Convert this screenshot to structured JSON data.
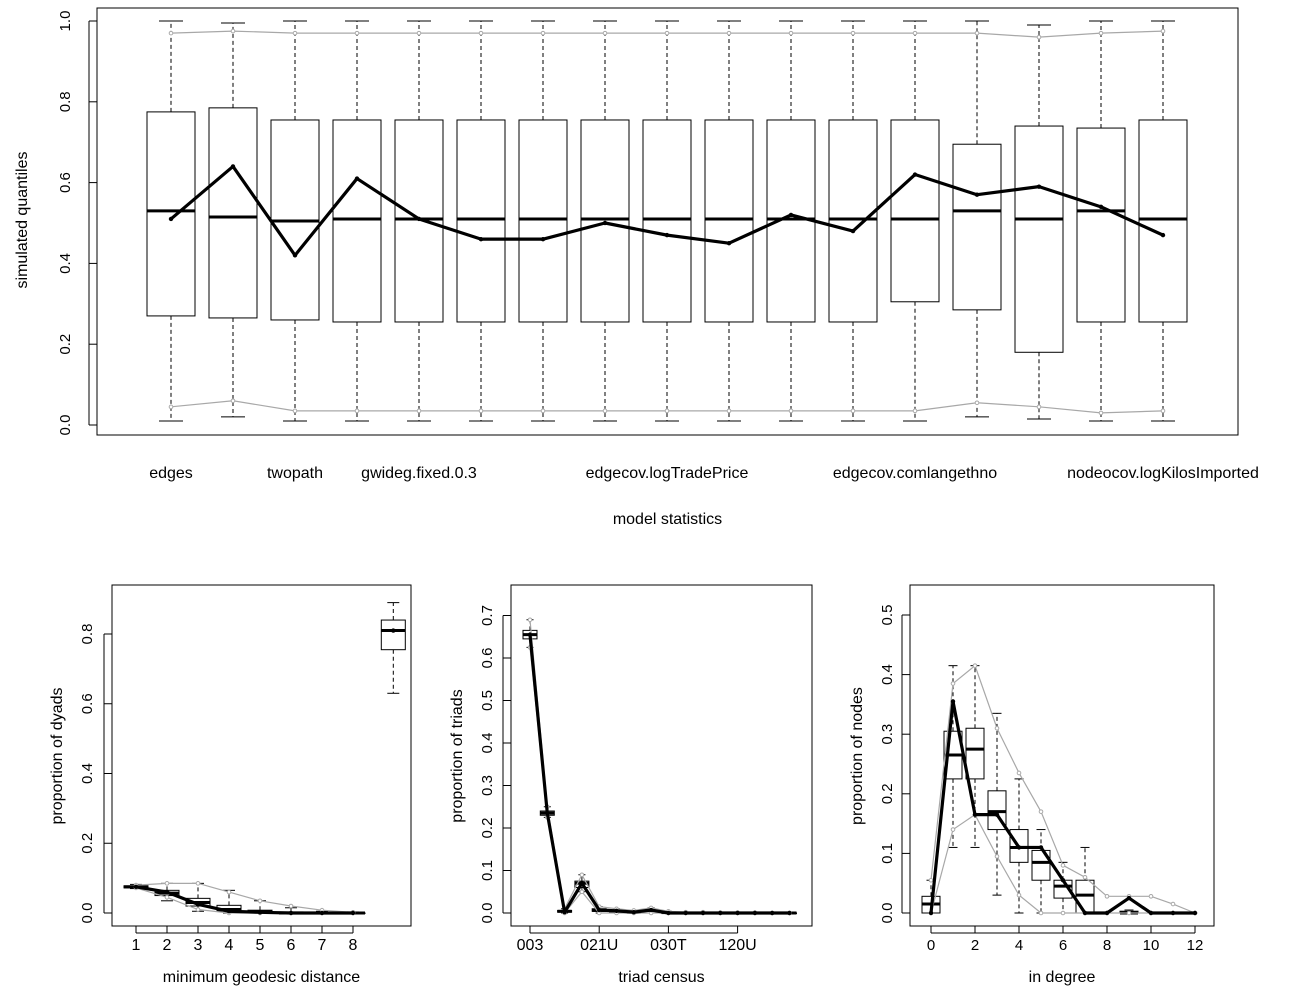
{
  "chart_data": [
    {
      "type": "box",
      "title": "",
      "xlabel": "model statistics",
      "ylabel": "simulated quantiles",
      "ylim": [
        0,
        1
      ],
      "yticks": [
        0.0,
        0.2,
        0.4,
        0.6,
        0.8,
        1.0
      ],
      "ytick_labels": [
        "0.0",
        "0.2",
        "0.4",
        "0.6",
        "0.8",
        "1.0"
      ],
      "xtick_labels": [
        {
          "index": 1,
          "label": "edges"
        },
        {
          "index": 3,
          "label": "twopath"
        },
        {
          "index": 5,
          "label": "gwideg.fixed.0.3"
        },
        {
          "index": 9,
          "label": "edgecov.logTradePrice"
        },
        {
          "index": 13,
          "label": "edgecov.comlangethno"
        },
        {
          "index": 17,
          "label": "nodeocov.logKilosImported"
        }
      ],
      "boxes": [
        {
          "index": 1,
          "whisker_low": 0.01,
          "q1": 0.27,
          "median": 0.53,
          "q3": 0.775,
          "whisker_high": 1.0
        },
        {
          "index": 2,
          "whisker_low": 0.02,
          "q1": 0.265,
          "median": 0.515,
          "q3": 0.785,
          "whisker_high": 0.995
        },
        {
          "index": 3,
          "whisker_low": 0.01,
          "q1": 0.26,
          "median": 0.505,
          "q3": 0.755,
          "whisker_high": 1.0
        },
        {
          "index": 4,
          "whisker_low": 0.01,
          "q1": 0.255,
          "median": 0.51,
          "q3": 0.755,
          "whisker_high": 1.0
        },
        {
          "index": 5,
          "whisker_low": 0.01,
          "q1": 0.255,
          "median": 0.51,
          "q3": 0.755,
          "whisker_high": 1.0
        },
        {
          "index": 6,
          "whisker_low": 0.01,
          "q1": 0.255,
          "median": 0.51,
          "q3": 0.755,
          "whisker_high": 1.0
        },
        {
          "index": 7,
          "whisker_low": 0.01,
          "q1": 0.255,
          "median": 0.51,
          "q3": 0.755,
          "whisker_high": 1.0
        },
        {
          "index": 8,
          "whisker_low": 0.01,
          "q1": 0.255,
          "median": 0.51,
          "q3": 0.755,
          "whisker_high": 1.0
        },
        {
          "index": 9,
          "whisker_low": 0.01,
          "q1": 0.255,
          "median": 0.51,
          "q3": 0.755,
          "whisker_high": 1.0
        },
        {
          "index": 10,
          "whisker_low": 0.01,
          "q1": 0.255,
          "median": 0.51,
          "q3": 0.755,
          "whisker_high": 1.0
        },
        {
          "index": 11,
          "whisker_low": 0.01,
          "q1": 0.255,
          "median": 0.51,
          "q3": 0.755,
          "whisker_high": 1.0
        },
        {
          "index": 12,
          "whisker_low": 0.01,
          "q1": 0.255,
          "median": 0.51,
          "q3": 0.755,
          "whisker_high": 1.0
        },
        {
          "index": 13,
          "whisker_low": 0.01,
          "q1": 0.305,
          "median": 0.51,
          "q3": 0.755,
          "whisker_high": 1.0
        },
        {
          "index": 14,
          "whisker_low": 0.02,
          "q1": 0.285,
          "median": 0.53,
          "q3": 0.695,
          "whisker_high": 1.0
        },
        {
          "index": 15,
          "whisker_low": 0.015,
          "q1": 0.18,
          "median": 0.51,
          "q3": 0.74,
          "whisker_high": 0.99
        },
        {
          "index": 16,
          "whisker_low": 0.01,
          "q1": 0.255,
          "median": 0.53,
          "q3": 0.735,
          "whisker_high": 1.0
        },
        {
          "index": 17,
          "whisker_low": 0.01,
          "q1": 0.255,
          "median": 0.51,
          "q3": 0.755,
          "whisker_high": 1.0
        }
      ],
      "observed_line": [
        0.51,
        0.64,
        0.42,
        0.61,
        0.51,
        0.46,
        0.46,
        0.5,
        0.47,
        0.45,
        0.52,
        0.48,
        0.62,
        0.57,
        0.59,
        0.54,
        0.47
      ],
      "gray_upper": [
        0.97,
        0.975,
        0.97,
        0.97,
        0.97,
        0.97,
        0.97,
        0.97,
        0.97,
        0.97,
        0.97,
        0.97,
        0.97,
        0.97,
        0.96,
        0.97,
        0.975
      ],
      "gray_lower": [
        0.045,
        0.06,
        0.035,
        0.035,
        0.035,
        0.035,
        0.035,
        0.035,
        0.035,
        0.035,
        0.035,
        0.035,
        0.035,
        0.055,
        0.045,
        0.03,
        0.035
      ],
      "colors": {
        "observed": "#000000",
        "band": "#a8a8a8"
      }
    },
    {
      "type": "box",
      "title": "",
      "xlabel": "minimum geodesic distance",
      "ylabel": "proportion of dyads",
      "ylim": [
        0,
        0.9
      ],
      "yticks": [
        0.0,
        0.2,
        0.4,
        0.6,
        0.8
      ],
      "ytick_labels": [
        "0.0",
        "0.2",
        "0.4",
        "0.6",
        "0.8"
      ],
      "xtick_labels": [
        {
          "index": 1,
          "label": "1"
        },
        {
          "index": 2,
          "label": "2"
        },
        {
          "index": 3,
          "label": "3"
        },
        {
          "index": 4,
          "label": "4"
        },
        {
          "index": 5,
          "label": "5"
        },
        {
          "index": 6,
          "label": "6"
        },
        {
          "index": 7,
          "label": "7"
        },
        {
          "index": 8,
          "label": "8"
        }
      ],
      "boxes": [
        {
          "index": 1,
          "whisker_low": 0.07,
          "q1": 0.072,
          "median": 0.075,
          "q3": 0.078,
          "whisker_high": 0.082
        },
        {
          "index": 2,
          "whisker_low": 0.035,
          "q1": 0.05,
          "median": 0.057,
          "q3": 0.065,
          "whisker_high": 0.085
        },
        {
          "index": 3,
          "whisker_low": 0.005,
          "q1": 0.02,
          "median": 0.03,
          "q3": 0.042,
          "whisker_high": 0.085
        },
        {
          "index": 4,
          "whisker_low": 0.0,
          "q1": 0.005,
          "median": 0.01,
          "q3": 0.022,
          "whisker_high": 0.065
        },
        {
          "index": 5,
          "whisker_low": 0.0,
          "q1": 0.0,
          "median": 0.003,
          "q3": 0.008,
          "whisker_high": 0.035
        },
        {
          "index": 6,
          "whisker_low": 0.0,
          "q1": 0.0,
          "median": 0.0,
          "q3": 0.003,
          "whisker_high": 0.015
        },
        {
          "index": 7,
          "whisker_low": 0.0,
          "q1": 0.0,
          "median": 0.0,
          "q3": 0.0,
          "whisker_high": 0.005
        },
        {
          "index": 8,
          "whisker_low": 0.0,
          "q1": 0.0,
          "median": 0.0,
          "q3": 0.0,
          "whisker_high": 0.003
        },
        {
          "index": 9.3,
          "whisker_low": 0.63,
          "q1": 0.755,
          "median": 0.81,
          "q3": 0.84,
          "whisker_high": 0.89
        }
      ],
      "observed_line": [
        {
          "x": 1,
          "y": 0.075
        },
        {
          "x": 2,
          "y": 0.06
        },
        {
          "x": 3,
          "y": 0.025
        },
        {
          "x": 4,
          "y": 0.005
        },
        {
          "x": 5,
          "y": 0.002
        },
        {
          "x": 6,
          "y": 0.0
        },
        {
          "x": 7,
          "y": 0.0
        },
        {
          "x": 8,
          "y": 0.0
        }
      ],
      "gray_upper": [
        {
          "x": 1,
          "y": 0.08
        },
        {
          "x": 2,
          "y": 0.085
        },
        {
          "x": 3,
          "y": 0.085
        },
        {
          "x": 4,
          "y": 0.06
        },
        {
          "x": 5,
          "y": 0.035
        },
        {
          "x": 6,
          "y": 0.02
        },
        {
          "x": 7,
          "y": 0.008
        },
        {
          "x": 8,
          "y": 0.002
        }
      ],
      "gray_lower": [
        {
          "x": 1,
          "y": 0.072
        },
        {
          "x": 2,
          "y": 0.045
        },
        {
          "x": 3,
          "y": 0.01
        },
        {
          "x": 4,
          "y": 0.0
        },
        {
          "x": 5,
          "y": 0.0
        },
        {
          "x": 6,
          "y": 0.0
        },
        {
          "x": 7,
          "y": 0.0
        },
        {
          "x": 8,
          "y": 0.0
        }
      ],
      "observed_extra_points": [
        {
          "x": 9.3,
          "y": 0.81
        }
      ],
      "colors": {
        "observed": "#000000",
        "band": "#a8a8a8"
      }
    },
    {
      "type": "box",
      "title": "",
      "xlabel": "triad census",
      "ylabel": "proportion of triads",
      "ylim": [
        0,
        0.7
      ],
      "yticks": [
        0.0,
        0.1,
        0.2,
        0.3,
        0.4,
        0.5,
        0.6,
        0.7
      ],
      "ytick_labels": [
        "0.0",
        "0.1",
        "0.2",
        "0.3",
        "0.4",
        "0.5",
        "0.6",
        "0.7"
      ],
      "xtick_labels": [
        {
          "index": 1,
          "label": "003"
        },
        {
          "index": 5,
          "label": "021U"
        },
        {
          "index": 9,
          "label": "030T"
        },
        {
          "index": 13,
          "label": "120U"
        }
      ],
      "boxes": [
        {
          "index": 1,
          "whisker_low": 0.625,
          "q1": 0.645,
          "median": 0.655,
          "q3": 0.665,
          "whisker_high": 0.69
        },
        {
          "index": 2,
          "whisker_low": 0.225,
          "q1": 0.23,
          "median": 0.235,
          "q3": 0.24,
          "whisker_high": 0.25
        },
        {
          "index": 3,
          "whisker_low": 0.0,
          "q1": 0.002,
          "median": 0.004,
          "q3": 0.006,
          "whisker_high": 0.01
        },
        {
          "index": 4,
          "whisker_low": 0.05,
          "q1": 0.06,
          "median": 0.07,
          "q3": 0.075,
          "whisker_high": 0.09
        },
        {
          "index": 5,
          "whisker_low": 0.0,
          "q1": 0.004,
          "median": 0.006,
          "q3": 0.01,
          "whisker_high": 0.015
        },
        {
          "index": 6,
          "whisker_low": 0.0,
          "q1": 0.002,
          "median": 0.004,
          "q3": 0.006,
          "whisker_high": 0.01
        },
        {
          "index": 7,
          "whisker_low": 0.0,
          "q1": 0.001,
          "median": 0.002,
          "q3": 0.004,
          "whisker_high": 0.006
        },
        {
          "index": 8,
          "whisker_low": 0.0,
          "q1": 0.004,
          "median": 0.006,
          "q3": 0.008,
          "whisker_high": 0.012
        },
        {
          "index": 9,
          "whisker_low": 0.0,
          "q1": 0.0,
          "median": 0.001,
          "q3": 0.002,
          "whisker_high": 0.004
        },
        {
          "index": 10,
          "whisker_low": 0.0,
          "q1": 0.0,
          "median": 0.0,
          "q3": 0.001,
          "whisker_high": 0.002
        },
        {
          "index": 11,
          "whisker_low": 0.0,
          "q1": 0.0,
          "median": 0.0,
          "q3": 0.001,
          "whisker_high": 0.002
        },
        {
          "index": 12,
          "whisker_low": 0.0,
          "q1": 0.0,
          "median": 0.0,
          "q3": 0.0,
          "whisker_high": 0.001
        },
        {
          "index": 13,
          "whisker_low": 0.0,
          "q1": 0.0,
          "median": 0.0,
          "q3": 0.0,
          "whisker_high": 0.001
        },
        {
          "index": 14,
          "whisker_low": 0.0,
          "q1": 0.0,
          "median": 0.0,
          "q3": 0.0,
          "whisker_high": 0.001
        },
        {
          "index": 15,
          "whisker_low": 0.0,
          "q1": 0.0,
          "median": 0.0,
          "q3": 0.0,
          "whisker_high": 0.0
        },
        {
          "index": 16,
          "whisker_low": 0.0,
          "q1": 0.0,
          "median": 0.0,
          "q3": 0.0,
          "whisker_high": 0.0
        }
      ],
      "observed_line": [
        0.655,
        0.235,
        0.002,
        0.07,
        0.007,
        0.005,
        0.002,
        0.007,
        0.0,
        0.0,
        0.0,
        0.0,
        0.0,
        0.0,
        0.0,
        0.0
      ],
      "gray_upper": [
        0.69,
        0.25,
        0.01,
        0.09,
        0.015,
        0.01,
        0.006,
        0.012,
        0.004,
        0.002,
        0.002,
        0.001,
        0.001,
        0.001,
        0.0,
        0.0
      ],
      "gray_lower": [
        0.625,
        0.225,
        0.0,
        0.05,
        0.0,
        0.0,
        0.0,
        0.0,
        0.0,
        0.0,
        0.0,
        0.0,
        0.0,
        0.0,
        0.0,
        0.0
      ],
      "colors": {
        "observed": "#000000",
        "band": "#a8a8a8"
      }
    },
    {
      "type": "box",
      "title": "",
      "xlabel": "in degree",
      "ylabel": "proportion of nodes",
      "ylim": [
        0,
        0.5
      ],
      "yticks": [
        0.0,
        0.1,
        0.2,
        0.3,
        0.4,
        0.5
      ],
      "ytick_labels": [
        "0.0",
        "0.1",
        "0.2",
        "0.3",
        "0.4",
        "0.5"
      ],
      "xlim": [
        -1,
        13
      ],
      "xticks": [
        0,
        2,
        4,
        6,
        8,
        10,
        12
      ],
      "xtick_labels": [
        "0",
        "2",
        "4",
        "6",
        "8",
        "10",
        "12"
      ],
      "boxes": [
        {
          "x": 0,
          "whisker_low": 0.0,
          "q1": 0.0,
          "median": 0.015,
          "q3": 0.028,
          "whisker_high": 0.055
        },
        {
          "x": 1,
          "whisker_low": 0.11,
          "q1": 0.225,
          "median": 0.265,
          "q3": 0.305,
          "whisker_high": 0.415
        },
        {
          "x": 2,
          "whisker_low": 0.11,
          "q1": 0.225,
          "median": 0.275,
          "q3": 0.31,
          "whisker_high": 0.415
        },
        {
          "x": 3,
          "whisker_low": 0.03,
          "q1": 0.14,
          "median": 0.17,
          "q3": 0.205,
          "whisker_high": 0.335
        },
        {
          "x": 4,
          "whisker_low": 0.0,
          "q1": 0.085,
          "median": 0.11,
          "q3": 0.14,
          "whisker_high": 0.225
        },
        {
          "x": 5,
          "whisker_low": 0.0,
          "q1": 0.055,
          "median": 0.085,
          "q3": 0.105,
          "whisker_high": 0.14
        },
        {
          "x": 6,
          "whisker_low": 0.0,
          "q1": 0.025,
          "median": 0.045,
          "q3": 0.055,
          "whisker_high": 0.085
        },
        {
          "x": 7,
          "whisker_low": 0.0,
          "q1": 0.0,
          "median": 0.03,
          "q3": 0.055,
          "whisker_high": 0.11
        },
        {
          "x": 9,
          "whisker_low": 0.0,
          "q1": 0.0,
          "median": 0.0,
          "q3": 0.003,
          "whisker_high": 0.005
        }
      ],
      "observed_line": [
        {
          "x": 0,
          "y": 0.0
        },
        {
          "x": 1,
          "y": 0.355
        },
        {
          "x": 2,
          "y": 0.165
        },
        {
          "x": 3,
          "y": 0.165
        },
        {
          "x": 4,
          "y": 0.11
        },
        {
          "x": 5,
          "y": 0.11
        },
        {
          "x": 6,
          "y": 0.055
        },
        {
          "x": 7,
          "y": 0.0
        },
        {
          "x": 8,
          "y": 0.0
        },
        {
          "x": 9,
          "y": 0.025
        },
        {
          "x": 10,
          "y": 0.0
        },
        {
          "x": 11,
          "y": 0.0
        },
        {
          "x": 12,
          "y": 0.0
        }
      ],
      "gray_upper": [
        {
          "x": 0,
          "y": 0.055
        },
        {
          "x": 1,
          "y": 0.385
        },
        {
          "x": 2,
          "y": 0.415
        },
        {
          "x": 3,
          "y": 0.31
        },
        {
          "x": 4,
          "y": 0.235
        },
        {
          "x": 5,
          "y": 0.17
        },
        {
          "x": 6,
          "y": 0.08
        },
        {
          "x": 7,
          "y": 0.06
        },
        {
          "x": 8,
          "y": 0.028
        },
        {
          "x": 9,
          "y": 0.028
        },
        {
          "x": 10,
          "y": 0.028
        },
        {
          "x": 11,
          "y": 0.015
        },
        {
          "x": 12,
          "y": 0.0
        }
      ],
      "gray_lower": [
        {
          "x": 0,
          "y": 0.0
        },
        {
          "x": 1,
          "y": 0.14
        },
        {
          "x": 2,
          "y": 0.165
        },
        {
          "x": 3,
          "y": 0.095
        },
        {
          "x": 4,
          "y": 0.03
        },
        {
          "x": 5,
          "y": 0.0
        },
        {
          "x": 6,
          "y": 0.0
        },
        {
          "x": 7,
          "y": 0.0
        },
        {
          "x": 8,
          "y": 0.0
        },
        {
          "x": 9,
          "y": 0.0
        },
        {
          "x": 10,
          "y": 0.0
        },
        {
          "x": 11,
          "y": 0.0
        },
        {
          "x": 12,
          "y": 0.0
        }
      ],
      "colors": {
        "observed": "#000000",
        "band": "#a8a8a8"
      }
    }
  ]
}
